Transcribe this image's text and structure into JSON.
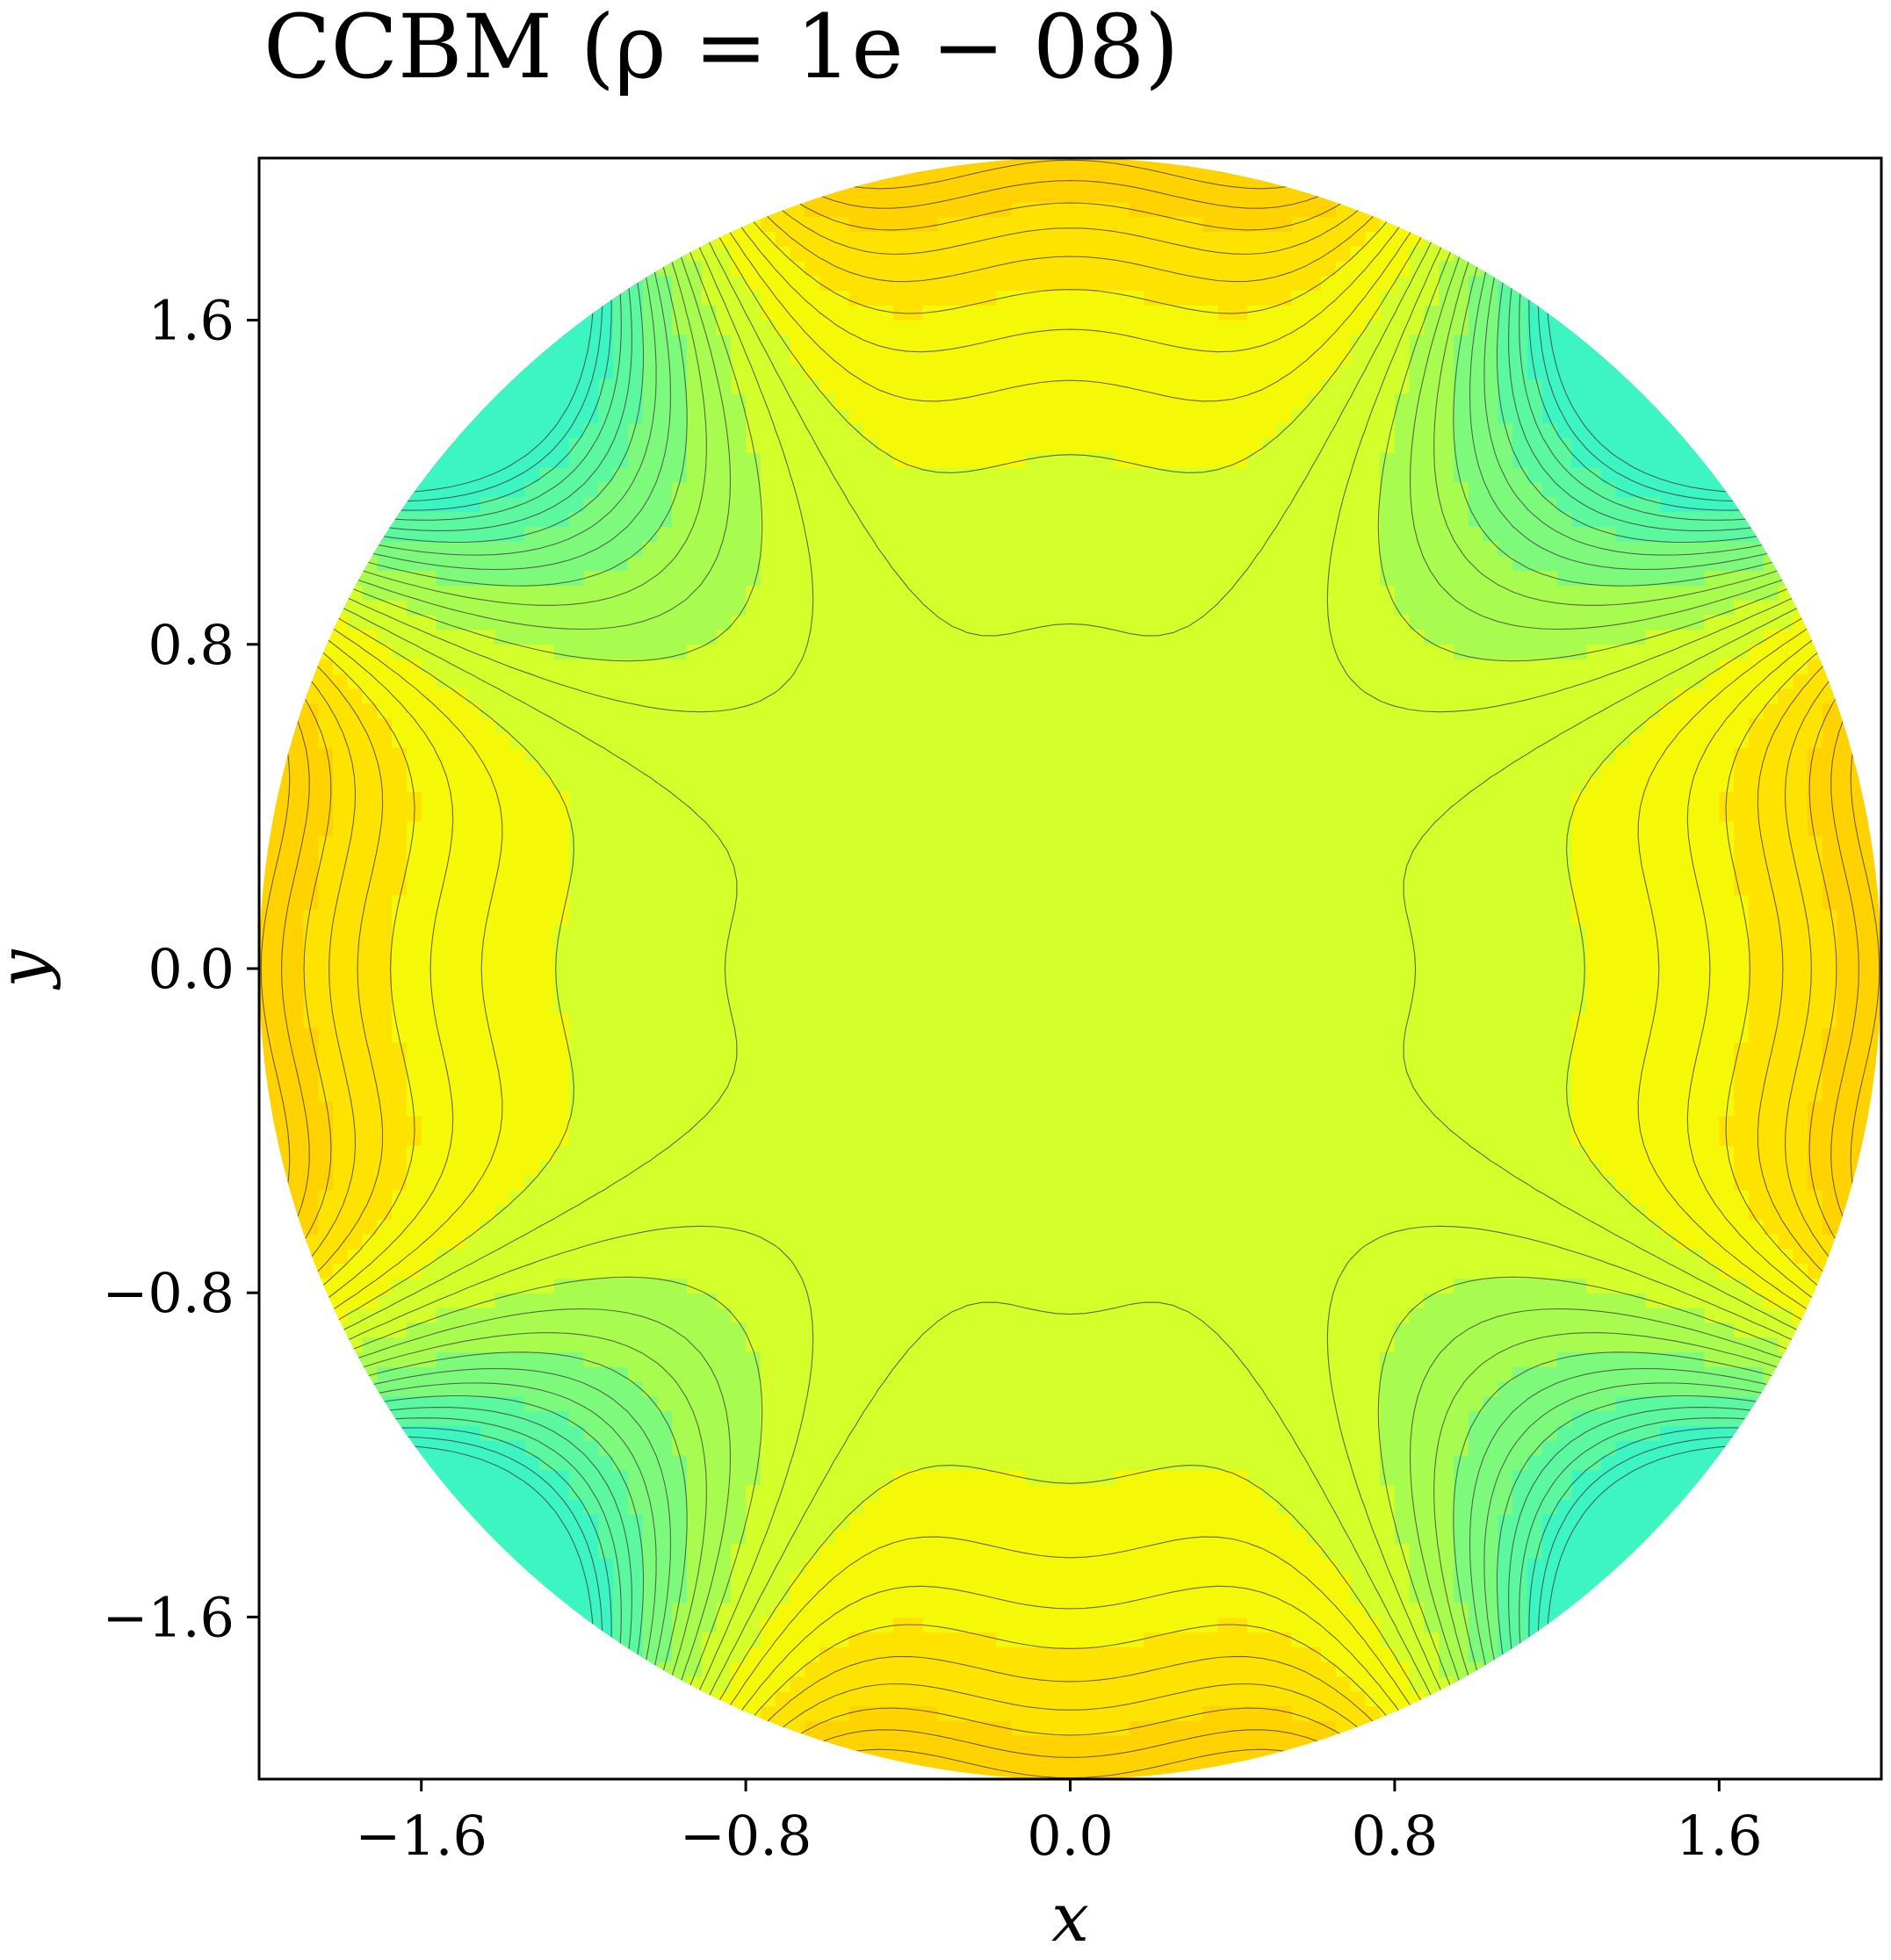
{
  "chart_data": {
    "type": "heatmap",
    "title": "CCBM (ρ = 1e − 08)",
    "xlabel": "x",
    "ylabel": "y",
    "xlim": [
      -2.0,
      2.0
    ],
    "ylim": [
      -2.0,
      2.0
    ],
    "domain": "disk",
    "radius": 2.0,
    "x_ticks": [
      "−1.6",
      "−0.8",
      "0.0",
      "0.8",
      "1.6"
    ],
    "y_ticks": [
      "1.6",
      "0.8",
      "0.0",
      "−0.8",
      "−1.6"
    ],
    "x_tick_values": [
      -1.6,
      -0.8,
      0.0,
      0.8,
      1.6
    ],
    "y_tick_values": [
      1.6,
      0.8,
      0.0,
      -0.8,
      -1.6
    ],
    "colormap": "jet",
    "grid": false,
    "contour_lines": true,
    "features": {
      "center_plateau": [
        0.0,
        0.0
      ],
      "orange_maxima": [
        [
          -1.85,
          0.55
        ],
        [
          -1.85,
          -0.55
        ],
        [
          1.85,
          0.55
        ],
        [
          1.85,
          -0.55
        ],
        [
          -0.55,
          1.85
        ],
        [
          0.55,
          1.85
        ],
        [
          -0.55,
          -1.85
        ],
        [
          0.55,
          -1.85
        ]
      ],
      "cyan_minima": [
        [
          -1.41,
          1.41
        ],
        [
          1.41,
          1.41
        ],
        [
          -1.41,
          -1.41
        ],
        [
          1.41,
          -1.41
        ]
      ]
    },
    "palette": [
      "#3df5c0",
      "#5cf8a0",
      "#7dfa7c",
      "#a8fc50",
      "#d4ff2a",
      "#f5f806",
      "#ffe300",
      "#ffd200",
      "#ffbd00",
      "#ffa800"
    ]
  }
}
